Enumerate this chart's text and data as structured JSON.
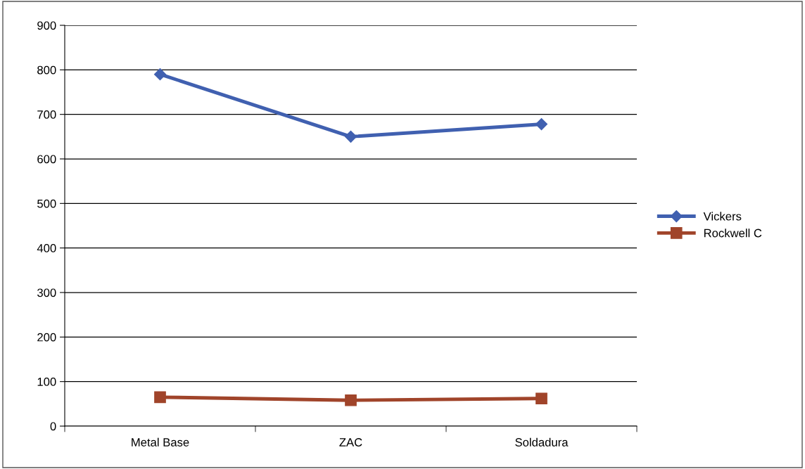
{
  "chart_data": {
    "type": "line",
    "categories": [
      "Metal Base",
      "ZAC",
      "Soldadura"
    ],
    "series": [
      {
        "name": "Vickers",
        "color": "#4060b0",
        "marker": "diamond",
        "values": [
          790,
          650,
          678
        ]
      },
      {
        "name": "Rockwell C",
        "color": "#a0442a",
        "marker": "square",
        "values": [
          65,
          58,
          62
        ]
      }
    ],
    "ylim": [
      0,
      900
    ],
    "yticks": [
      0,
      100,
      200,
      300,
      400,
      500,
      600,
      700,
      800,
      900
    ],
    "grid": "y",
    "legend": "right"
  }
}
